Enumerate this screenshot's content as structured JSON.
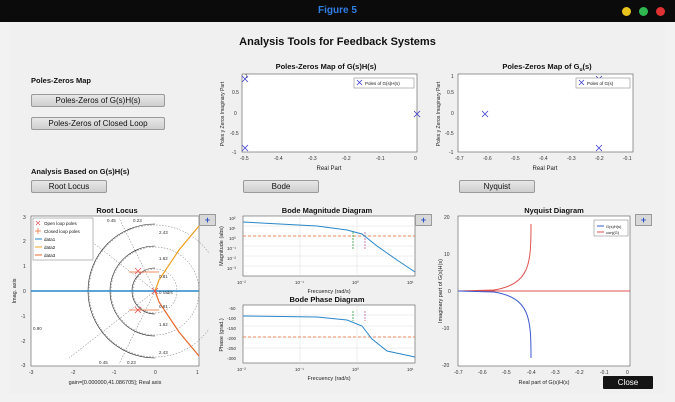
{
  "window": {
    "title": "Figure 5",
    "dot_colors": [
      "#e8c21d",
      "#2fb84f",
      "#e03232"
    ]
  },
  "main_title": "Analysis Tools for Feedback Systems",
  "poles_zeros_section": {
    "label": "Poles-Zeros Map",
    "btn_gh": "Poles-Zeros of G(s)H(s)",
    "btn_closed": "Poles-Zeros of Closed Loop"
  },
  "analysis_section": {
    "label": "Analysis Based on G(s)H(s)",
    "btn_root_locus": "Root Locus",
    "btn_bode": "Bode",
    "btn_nyquist": "Nyquist"
  },
  "pzmap_gh": {
    "title": "Poles-Zeros Map of G(s)H(s)",
    "xlabel": "Real Part",
    "ylabel": "Poles y Zeros Imaginary Part",
    "legend": "Poles of G(s)H(s)",
    "xticks": [
      "-0.5",
      "-0.4",
      "-0.3",
      "-0.2",
      "-0.1",
      "0"
    ],
    "yticks": [
      "1",
      "0.5",
      "0",
      "-0.5",
      "-1"
    ]
  },
  "pzmap_g": {
    "title_main": "Poles-Zeros Map of G",
    "title_sub": "u",
    "title_end": "(s)",
    "xlabel": "Real Part",
    "ylabel": "Poles y Zeros Imaginary Part",
    "legend": "Poles of G(s)",
    "xticks": [
      "-0.7",
      "-0.6",
      "-0.5",
      "-0.4",
      "-0.3",
      "-0.2",
      "-0.1"
    ],
    "yticks": [
      "1",
      "0.5",
      "0",
      "-0.5",
      "-1"
    ]
  },
  "root_locus": {
    "title": "Root Locus",
    "xlabel": "gain=[0.000000,41.086705]; Real axis",
    "ylabel": "Imag. axis",
    "legend": [
      "Open loop poles",
      "Closed loop poles",
      "data1",
      "data2",
      "data3"
    ],
    "xticks": [
      "-3",
      "-2",
      "-1",
      "0",
      "1"
    ],
    "yticks": [
      "3",
      "2",
      "1",
      "0",
      "-1",
      "-2",
      "-3"
    ],
    "damping_labels": [
      "0.45",
      "0.23",
      "2.43",
      "1.62",
      "0.81",
      "0 rad/s",
      "0.81",
      "1.62",
      "2.43",
      "0.90",
      "0.45",
      "0.23"
    ],
    "plus_label": "+"
  },
  "bode_mag": {
    "title": "Bode Magnitude Diagram",
    "xlabel": "Frecuency (rad/s)",
    "ylabel": "Magnitude (abs)",
    "xticks": [
      "10⁻²",
      "10⁻¹",
      "10⁰",
      "10¹"
    ],
    "yticks": [
      "10²",
      "10¹",
      "10⁰",
      "10⁻¹",
      "10⁻²",
      "10⁻³"
    ],
    "plus_label": "+"
  },
  "bode_phase": {
    "title": "Bode Phase Diagram",
    "xlabel": "Frecuency (rad/s)",
    "ylabel": "Phase (grad.)",
    "xticks": [
      "10⁻²",
      "10⁻¹",
      "10⁰",
      "10¹"
    ],
    "yticks": [
      "-50",
      "-100",
      "-150",
      "-200",
      "-250",
      "-300"
    ]
  },
  "nyquist": {
    "title": "Nyquist Diagram",
    "xlabel": "Real part of G(s)H(s)",
    "ylabel": "Imaginary part of G(s)H(s)",
    "legend": [
      "G(s)H(s)",
      "conj(G)"
    ],
    "xticks": [
      "-0.7",
      "-0.6",
      "-0.5",
      "-0.4",
      "-0.3",
      "-0.2",
      "-0.1",
      "0"
    ],
    "yticks": [
      "20",
      "10",
      "0",
      "-10",
      "-20"
    ],
    "plus_label": "+"
  },
  "close_label": "Close"
}
